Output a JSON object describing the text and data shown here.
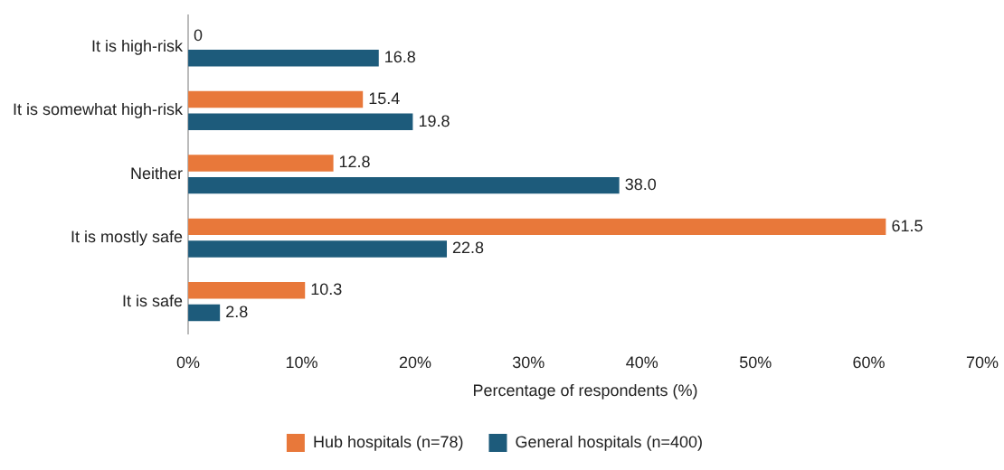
{
  "chart_data": {
    "type": "bar",
    "orientation": "horizontal",
    "xlabel": "Percentage of respondents (%)",
    "categories": [
      "It is high-risk",
      "It is somewhat high-risk",
      "Neither",
      "It is mostly safe",
      "It is safe"
    ],
    "series": [
      {
        "name": "Hub hospitals (n=78)",
        "color": "#e8783a",
        "values": [
          0,
          15.4,
          12.8,
          61.5,
          10.3
        ],
        "value_labels": [
          "0",
          "15.4",
          "12.8",
          "61.5",
          "10.3"
        ]
      },
      {
        "name": "General hospitals (n=400)",
        "color": "#1d5b7b",
        "values": [
          16.8,
          19.8,
          38.0,
          22.8,
          2.8
        ],
        "value_labels": [
          "16.8",
          "19.8",
          "38.0",
          "22.8",
          "2.8"
        ]
      }
    ],
    "xlim": [
      0,
      70
    ],
    "xticks": [
      {
        "value": 0,
        "label": "0%"
      },
      {
        "value": 10,
        "label": "10%"
      },
      {
        "value": 20,
        "label": "20%"
      },
      {
        "value": 30,
        "label": "30%"
      },
      {
        "value": 40,
        "label": "40%"
      },
      {
        "value": 50,
        "label": "50%"
      },
      {
        "value": 60,
        "label": "60%"
      },
      {
        "value": 70,
        "label": "70%"
      }
    ],
    "grid": false,
    "legend": "bottom"
  }
}
